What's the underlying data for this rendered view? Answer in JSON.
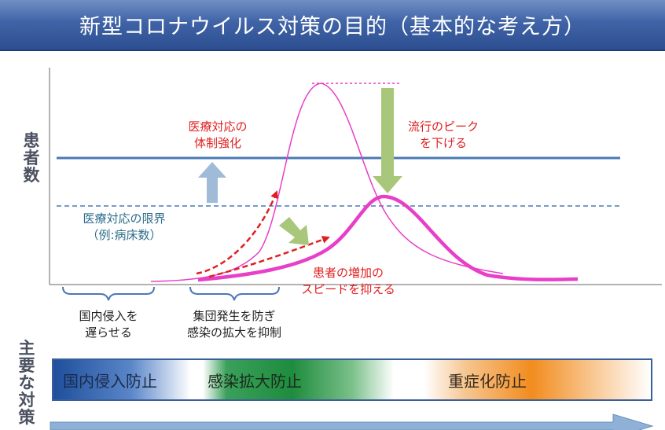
{
  "title": "新型コロナウイルス対策の目的（基本的な考え方）",
  "axis": {
    "y_label": "患者数"
  },
  "labels": {
    "capacity_strengthen": [
      "医療対応の",
      "体制強化"
    ],
    "lower_peak": [
      "流行のピーク",
      "を下げる"
    ],
    "capacity_limit": [
      "医療対応の限界",
      "（例:病床数）"
    ],
    "slow_growth": [
      "患者の増加の",
      "スピードを抑える"
    ],
    "phase_entry": [
      "国内侵入を",
      "遅らせる"
    ],
    "phase_cluster": [
      "集団発生を防ぎ",
      "感染の拡大を抑制"
    ]
  },
  "measures": {
    "title": "主要な対策",
    "items": [
      "国内侵入防止",
      "感染拡大防止",
      "重症化防止"
    ]
  },
  "colors": {
    "title_bar": "#3f63a6",
    "capacity_line": "#4a78b5",
    "curve": "#e83ec8",
    "trend_arrow": "#e02020",
    "arrow_green": "#a9c77a",
    "arrow_blue": "#9fbbd8"
  }
}
